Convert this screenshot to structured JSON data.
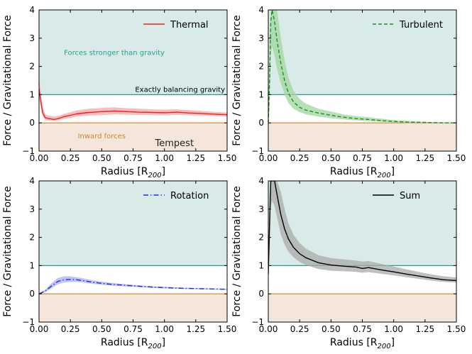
{
  "chart_data": [
    {
      "type": "line",
      "panel": "top-left",
      "legend": "Thermal",
      "legend_location": "top-right",
      "line_style": "solid",
      "color": "#ee2222",
      "band_color": "#f2a8a8",
      "xlabel": "Radius [R",
      "xlabel_sub": "200",
      "xlabel_end": "]",
      "ylabel": "Force / Gravitational Force",
      "xlim": [
        0,
        1.5
      ],
      "ylim": [
        -1,
        4
      ],
      "xticks": [
        "0.00",
        "0.25",
        "0.50",
        "0.75",
        "1.00",
        "1.25",
        "1.50"
      ],
      "yticks": [
        "−1",
        "0",
        "1",
        "2",
        "3",
        "4"
      ],
      "region_labels": {
        "upper": "Forces stronger than gravity",
        "balance": "Exactly balancing gravity",
        "lower": "Inward forces"
      },
      "watermark": "Tempest",
      "x": [
        0,
        0.01,
        0.02,
        0.03,
        0.05,
        0.08,
        0.12,
        0.16,
        0.2,
        0.25,
        0.3,
        0.4,
        0.5,
        0.6,
        0.7,
        0.8,
        0.9,
        1.0,
        1.1,
        1.2,
        1.3,
        1.4,
        1.5
      ],
      "y": [
        1.2,
        0.9,
        0.6,
        0.35,
        0.18,
        0.15,
        0.12,
        0.16,
        0.22,
        0.27,
        0.32,
        0.37,
        0.4,
        0.42,
        0.4,
        0.38,
        0.37,
        0.36,
        0.38,
        0.35,
        0.33,
        0.31,
        0.29
      ],
      "y_low": [
        0.9,
        0.65,
        0.4,
        0.22,
        0.1,
        0.08,
        0.07,
        0.1,
        0.14,
        0.18,
        0.22,
        0.26,
        0.28,
        0.3,
        0.29,
        0.28,
        0.28,
        0.27,
        0.29,
        0.27,
        0.26,
        0.24,
        0.22
      ],
      "y_high": [
        1.6,
        1.2,
        0.85,
        0.55,
        0.3,
        0.25,
        0.22,
        0.26,
        0.32,
        0.38,
        0.44,
        0.5,
        0.53,
        0.55,
        0.52,
        0.5,
        0.48,
        0.47,
        0.48,
        0.45,
        0.42,
        0.39,
        0.37
      ]
    },
    {
      "type": "line",
      "panel": "top-right",
      "legend": "Turbulent",
      "legend_location": "top-right",
      "line_style": "dashed",
      "color": "#228b22",
      "band_color": "#9fd69f",
      "xlabel": "Radius [R",
      "xlabel_sub": "200",
      "xlabel_end": "]",
      "ylabel": "Force / Gravitational Force",
      "xlim": [
        0,
        1.5
      ],
      "ylim": [
        -1,
        4
      ],
      "xticks": [
        "0.00",
        "0.25",
        "0.50",
        "0.75",
        "1.00",
        "1.25",
        "1.50"
      ],
      "yticks": [
        "−1",
        "0",
        "1",
        "2",
        "3",
        "4"
      ],
      "x": [
        0,
        0.01,
        0.02,
        0.03,
        0.05,
        0.07,
        0.1,
        0.13,
        0.16,
        0.2,
        0.25,
        0.3,
        0.4,
        0.5,
        0.6,
        0.7,
        0.8,
        0.9,
        1.0,
        1.1,
        1.2,
        1.3,
        1.4,
        1.5
      ],
      "y": [
        0.0,
        1.5,
        3.6,
        4.0,
        3.6,
        2.9,
        2.1,
        1.5,
        1.05,
        0.75,
        0.55,
        0.45,
        0.35,
        0.27,
        0.2,
        0.15,
        0.12,
        0.08,
        0.05,
        0.03,
        0.02,
        0.01,
        0.0,
        0.0
      ],
      "y_low": [
        0.0,
        0.6,
        2.4,
        2.7,
        2.4,
        1.9,
        1.4,
        1.0,
        0.7,
        0.5,
        0.38,
        0.3,
        0.22,
        0.16,
        0.12,
        0.09,
        0.06,
        0.04,
        0.02,
        0.0,
        0.0,
        0.0,
        -0.01,
        -0.01
      ],
      "y_high": [
        0.0,
        2.8,
        4.0,
        4.0,
        4.0,
        4.0,
        3.0,
        2.2,
        1.6,
        1.15,
        0.85,
        0.68,
        0.5,
        0.4,
        0.3,
        0.24,
        0.2,
        0.15,
        0.1,
        0.07,
        0.05,
        0.03,
        0.02,
        0.02
      ]
    },
    {
      "type": "line",
      "panel": "bottom-left",
      "legend": "Rotation",
      "legend_location": "top-right",
      "line_style": "dashdot",
      "color": "#1f2fe0",
      "band_color": "#aab0f2",
      "xlabel": "Radius [R",
      "xlabel_sub": "200",
      "xlabel_end": "]",
      "ylabel": "Force / Gravitational Force",
      "xlim": [
        0,
        1.5
      ],
      "ylim": [
        -1,
        4
      ],
      "xticks": [
        "0.00",
        "0.25",
        "0.50",
        "0.75",
        "1.00",
        "1.25",
        "1.50"
      ],
      "yticks": [
        "−1",
        "0",
        "1",
        "2",
        "3",
        "4"
      ],
      "x": [
        0,
        0.05,
        0.1,
        0.15,
        0.2,
        0.25,
        0.3,
        0.35,
        0.4,
        0.5,
        0.6,
        0.7,
        0.8,
        0.9,
        1.0,
        1.1,
        1.2,
        1.3,
        1.4,
        1.5
      ],
      "y": [
        0.0,
        0.1,
        0.28,
        0.44,
        0.5,
        0.51,
        0.5,
        0.47,
        0.43,
        0.37,
        0.33,
        0.3,
        0.27,
        0.24,
        0.22,
        0.2,
        0.19,
        0.18,
        0.17,
        0.16
      ],
      "y_low": [
        0.0,
        0.06,
        0.2,
        0.34,
        0.4,
        0.42,
        0.42,
        0.4,
        0.37,
        0.32,
        0.29,
        0.26,
        0.24,
        0.21,
        0.19,
        0.18,
        0.17,
        0.16,
        0.15,
        0.14
      ],
      "y_high": [
        0.02,
        0.15,
        0.38,
        0.56,
        0.62,
        0.62,
        0.59,
        0.55,
        0.5,
        0.43,
        0.38,
        0.34,
        0.3,
        0.27,
        0.25,
        0.23,
        0.21,
        0.2,
        0.19,
        0.18
      ]
    },
    {
      "type": "line",
      "panel": "bottom-right",
      "legend": "Sum",
      "legend_location": "top-right",
      "line_style": "solid",
      "color": "#000000",
      "band_color": "#a9a9a9",
      "xlabel": "Radius [R",
      "xlabel_sub": "200",
      "xlabel_end": "]",
      "ylabel": "Force / Gravitational Force",
      "xlim": [
        0,
        1.5
      ],
      "ylim": [
        -1,
        4
      ],
      "xticks": [
        "0.00",
        "0.25",
        "0.50",
        "0.75",
        "1.00",
        "1.25",
        "1.50"
      ],
      "yticks": [
        "−1",
        "0",
        "1",
        "2",
        "3",
        "4"
      ],
      "x": [
        0,
        0.01,
        0.02,
        0.03,
        0.05,
        0.07,
        0.1,
        0.13,
        0.16,
        0.2,
        0.25,
        0.3,
        0.4,
        0.5,
        0.6,
        0.7,
        0.75,
        0.8,
        0.9,
        1.0,
        1.1,
        1.2,
        1.3,
        1.4,
        1.5
      ],
      "y": [
        0.7,
        2.5,
        4.0,
        4.0,
        4.0,
        3.5,
        2.8,
        2.3,
        1.95,
        1.65,
        1.42,
        1.28,
        1.1,
        1.02,
        0.98,
        0.95,
        0.9,
        0.93,
        0.85,
        0.78,
        0.7,
        0.63,
        0.56,
        0.5,
        0.47
      ],
      "y_low": [
        0.5,
        1.6,
        3.0,
        3.3,
        3.1,
        2.7,
        2.1,
        1.75,
        1.5,
        1.3,
        1.13,
        1.02,
        0.88,
        0.82,
        0.8,
        0.78,
        0.75,
        0.77,
        0.71,
        0.65,
        0.59,
        0.53,
        0.47,
        0.42,
        0.4
      ],
      "y_high": [
        1.0,
        3.5,
        4.0,
        4.0,
        4.0,
        4.0,
        3.6,
        3.0,
        2.5,
        2.1,
        1.8,
        1.6,
        1.37,
        1.27,
        1.22,
        1.18,
        1.14,
        1.16,
        1.06,
        0.97,
        0.87,
        0.78,
        0.69,
        0.62,
        0.58
      ]
    }
  ],
  "colors": {
    "upper_region": "#d9ebe8",
    "lower_region": "#f5e6dc",
    "balance_line": "#2a9d8f",
    "zero_line": "#c8862a",
    "upper_label": "#2a9d8f",
    "balance_label": "#000000",
    "lower_label": "#c8862a"
  }
}
